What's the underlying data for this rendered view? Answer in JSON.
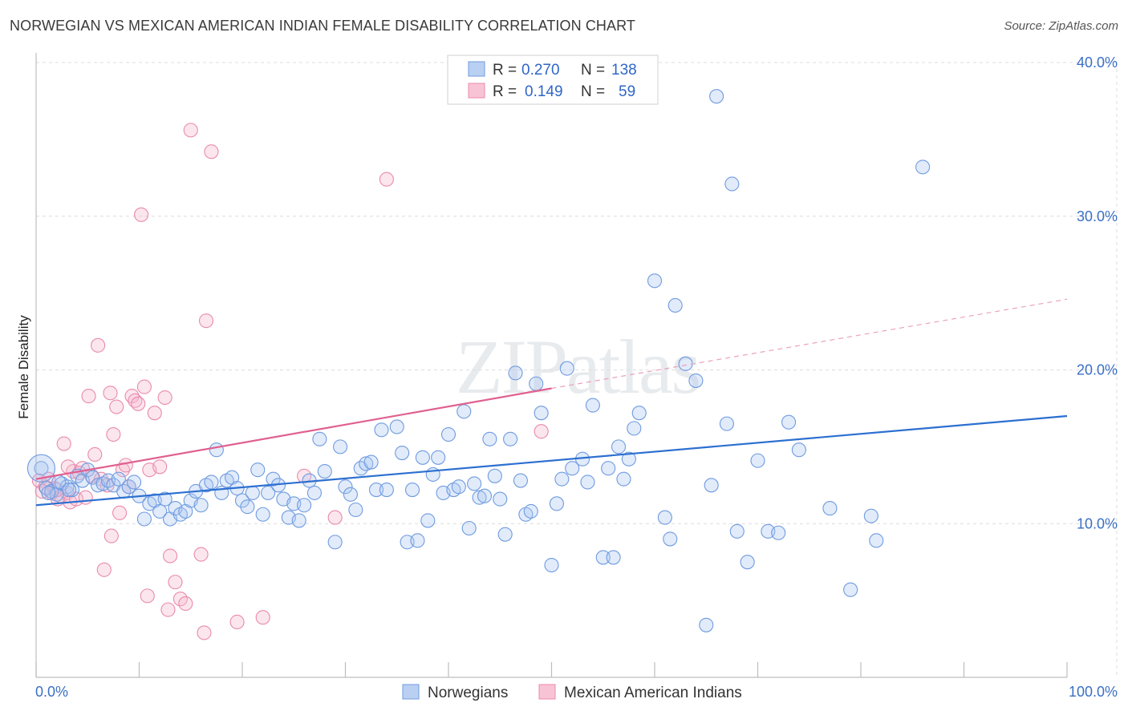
{
  "title": "NORWEGIAN VS MEXICAN AMERICAN INDIAN FEMALE DISABILITY CORRELATION CHART",
  "source": "Source: ZipAtlas.com",
  "watermark": "ZIPatlas",
  "colors": {
    "blue": "#6f9be0",
    "blue_line": "#2c6fd1",
    "pink": "#ec8aa9",
    "pink_line": "#e06090",
    "tick_text": "#3b6fc4"
  },
  "legend": {
    "rows": [
      {
        "r_label": "R =",
        "r_value": "0.270",
        "n_label": "N =",
        "n_value": "138"
      },
      {
        "r_label": "R =",
        "r_value": "0.149",
        "n_label": "N =",
        "n_value": "59"
      }
    ]
  },
  "chart_data": {
    "type": "scatter",
    "title": "NORWEGIAN VS MEXICAN AMERICAN INDIAN FEMALE DISABILITY CORRELATION CHART",
    "xlabel": "",
    "ylabel": "Female Disability",
    "xlim": [
      0,
      100
    ],
    "ylim": [
      0,
      40
    ],
    "x_tick_labels": [
      "0.0%",
      "100.0%"
    ],
    "y_ticks": [
      10,
      20,
      30,
      40
    ],
    "y_tick_labels": [
      "10.0%",
      "20.0%",
      "30.0%",
      "40.0%"
    ],
    "grid": true,
    "legend_position": "top-center",
    "series": [
      {
        "name": "Norwegians",
        "trend": {
          "x": [
            0,
            100
          ],
          "y": [
            11.2,
            17.0
          ]
        },
        "points": [
          [
            0.5,
            13.6
          ],
          [
            1,
            12.3
          ],
          [
            1.5,
            12.1
          ],
          [
            2,
            11.9
          ],
          [
            2.5,
            12.6
          ],
          [
            3,
            12.4
          ],
          [
            3.5,
            12.2
          ],
          [
            4,
            13.1
          ],
          [
            4.5,
            12.8
          ],
          [
            5,
            13.5
          ],
          [
            5.5,
            13.0
          ],
          [
            6,
            12.5
          ],
          [
            6.5,
            12.6
          ],
          [
            7,
            12.8
          ],
          [
            7.5,
            12.5
          ],
          [
            8,
            12.9
          ],
          [
            8.5,
            12.1
          ],
          [
            9,
            12.4
          ],
          [
            9.5,
            12.7
          ],
          [
            10,
            11.8
          ],
          [
            10.5,
            10.3
          ],
          [
            11,
            11.3
          ],
          [
            11.5,
            11.5
          ],
          [
            12,
            10.8
          ],
          [
            12.5,
            11.6
          ],
          [
            13,
            10.3
          ],
          [
            13.5,
            11.0
          ],
          [
            14,
            10.6
          ],
          [
            14.5,
            10.8
          ],
          [
            15,
            11.5
          ],
          [
            15.5,
            12.1
          ],
          [
            16,
            11.2
          ],
          [
            16.5,
            12.5
          ],
          [
            17,
            12.7
          ],
          [
            17.5,
            14.8
          ],
          [
            18,
            12.0
          ],
          [
            18.5,
            12.8
          ],
          [
            19,
            13.0
          ],
          [
            19.5,
            12.3
          ],
          [
            20,
            11.5
          ],
          [
            20.5,
            11.1
          ],
          [
            21,
            12.0
          ],
          [
            21.5,
            13.5
          ],
          [
            22,
            10.6
          ],
          [
            22.5,
            12.0
          ],
          [
            23,
            12.9
          ],
          [
            23.5,
            12.5
          ],
          [
            24,
            11.6
          ],
          [
            24.5,
            10.4
          ],
          [
            25,
            11.3
          ],
          [
            25.5,
            10.2
          ],
          [
            26,
            11.2
          ],
          [
            26.5,
            12.8
          ],
          [
            27,
            12.0
          ],
          [
            27.5,
            15.5
          ],
          [
            28,
            13.4
          ],
          [
            29,
            8.8
          ],
          [
            29.5,
            15.0
          ],
          [
            30,
            12.4
          ],
          [
            30.5,
            11.9
          ],
          [
            31,
            10.9
          ],
          [
            31.5,
            13.6
          ],
          [
            32,
            13.9
          ],
          [
            32.5,
            14.0
          ],
          [
            33,
            12.2
          ],
          [
            33.5,
            16.1
          ],
          [
            34,
            12.2
          ],
          [
            35,
            16.3
          ],
          [
            35.5,
            14.6
          ],
          [
            36,
            8.8
          ],
          [
            36.5,
            12.2
          ],
          [
            37,
            8.9
          ],
          [
            37.5,
            14.3
          ],
          [
            38,
            10.2
          ],
          [
            38.5,
            13.2
          ],
          [
            39,
            14.3
          ],
          [
            39.5,
            12.0
          ],
          [
            40,
            15.8
          ],
          [
            40.5,
            12.2
          ],
          [
            41,
            12.4
          ],
          [
            41.5,
            17.3
          ],
          [
            42,
            9.7
          ],
          [
            42.5,
            12.6
          ],
          [
            43,
            11.7
          ],
          [
            43.5,
            11.8
          ],
          [
            44,
            15.5
          ],
          [
            44.5,
            13.1
          ],
          [
            45,
            11.6
          ],
          [
            45.5,
            9.3
          ],
          [
            46,
            15.5
          ],
          [
            46.5,
            19.8
          ],
          [
            47,
            12.8
          ],
          [
            47.5,
            10.6
          ],
          [
            48,
            10.8
          ],
          [
            48.5,
            19.1
          ],
          [
            49,
            17.2
          ],
          [
            50,
            7.3
          ],
          [
            50.5,
            11.3
          ],
          [
            51,
            12.9
          ],
          [
            51.5,
            20.1
          ],
          [
            52,
            13.6
          ],
          [
            53,
            14.2
          ],
          [
            53.5,
            12.7
          ],
          [
            54,
            17.7
          ],
          [
            55,
            7.8
          ],
          [
            55.5,
            13.6
          ],
          [
            56,
            7.8
          ],
          [
            56.5,
            15.0
          ],
          [
            57,
            12.9
          ],
          [
            57.5,
            14.2
          ],
          [
            58,
            16.2
          ],
          [
            58.5,
            17.2
          ],
          [
            60,
            25.8
          ],
          [
            61,
            10.4
          ],
          [
            61.5,
            9.0
          ],
          [
            62,
            24.2
          ],
          [
            63,
            20.4
          ],
          [
            64,
            19.3
          ],
          [
            65,
            3.4
          ],
          [
            65.5,
            12.5
          ],
          [
            66,
            37.8
          ],
          [
            67,
            16.5
          ],
          [
            67.5,
            32.1
          ],
          [
            68,
            9.5
          ],
          [
            69,
            7.5
          ],
          [
            70,
            14.1
          ],
          [
            71,
            9.5
          ],
          [
            72,
            9.4
          ],
          [
            73,
            16.6
          ],
          [
            74,
            14.8
          ],
          [
            77,
            11.0
          ],
          [
            79,
            5.7
          ],
          [
            81,
            10.5
          ],
          [
            81.5,
            8.9
          ],
          [
            86,
            33.2
          ],
          [
            1.2,
            12.0
          ],
          [
            2.2,
            12.7
          ],
          [
            3.2,
            12.2
          ]
        ]
      },
      {
        "name": "Mexican American Indians",
        "trend": {
          "x": [
            0,
            50
          ],
          "y": [
            12.9,
            18.8
          ]
        },
        "trend_dashed": {
          "x": [
            50,
            100
          ],
          "y": [
            18.8,
            24.6
          ]
        },
        "points": [
          [
            0.3,
            12.8
          ],
          [
            0.6,
            12.1
          ],
          [
            0.9,
            12.4
          ],
          [
            1.2,
            12.9
          ],
          [
            1.5,
            12.0
          ],
          [
            1.8,
            12.3
          ],
          [
            2.1,
            11.6
          ],
          [
            2.4,
            11.8
          ],
          [
            2.7,
            15.2
          ],
          [
            3,
            12.0
          ],
          [
            3.3,
            11.4
          ],
          [
            3.6,
            13.4
          ],
          [
            3.9,
            11.6
          ],
          [
            4.2,
            13.3
          ],
          [
            4.5,
            13.6
          ],
          [
            4.8,
            11.7
          ],
          [
            5.1,
            18.3
          ],
          [
            5.4,
            13.1
          ],
          [
            5.7,
            14.5
          ],
          [
            6,
            21.6
          ],
          [
            6.3,
            12.9
          ],
          [
            6.6,
            7.0
          ],
          [
            6.9,
            12.5
          ],
          [
            7.2,
            18.5
          ],
          [
            7.5,
            15.8
          ],
          [
            7.8,
            17.6
          ],
          [
            8.1,
            10.7
          ],
          [
            8.4,
            13.5
          ],
          [
            8.7,
            13.8
          ],
          [
            9,
            12.4
          ],
          [
            9.3,
            18.3
          ],
          [
            9.6,
            18.0
          ],
          [
            9.9,
            17.8
          ],
          [
            10.2,
            30.1
          ],
          [
            10.5,
            18.9
          ],
          [
            10.8,
            5.3
          ],
          [
            11,
            13.5
          ],
          [
            11.5,
            17.2
          ],
          [
            12,
            13.7
          ],
          [
            12.5,
            18.2
          ],
          [
            12.8,
            4.4
          ],
          [
            13,
            7.9
          ],
          [
            13.5,
            6.2
          ],
          [
            14,
            5.1
          ],
          [
            14.5,
            4.8
          ],
          [
            15,
            35.6
          ],
          [
            16,
            8.0
          ],
          [
            16.3,
            2.9
          ],
          [
            16.5,
            23.2
          ],
          [
            17,
            34.2
          ],
          [
            19.5,
            3.6
          ],
          [
            22,
            3.9
          ],
          [
            26,
            13.1
          ],
          [
            29,
            10.4
          ],
          [
            34,
            32.4
          ],
          [
            49,
            16.0
          ],
          [
            7.3,
            9.2
          ],
          [
            3.1,
            13.7
          ],
          [
            2.0,
            12.2
          ]
        ]
      }
    ]
  },
  "bottom_legend": {
    "items": [
      {
        "label": "Norwegians"
      },
      {
        "label": "Mexican American Indians"
      }
    ]
  }
}
